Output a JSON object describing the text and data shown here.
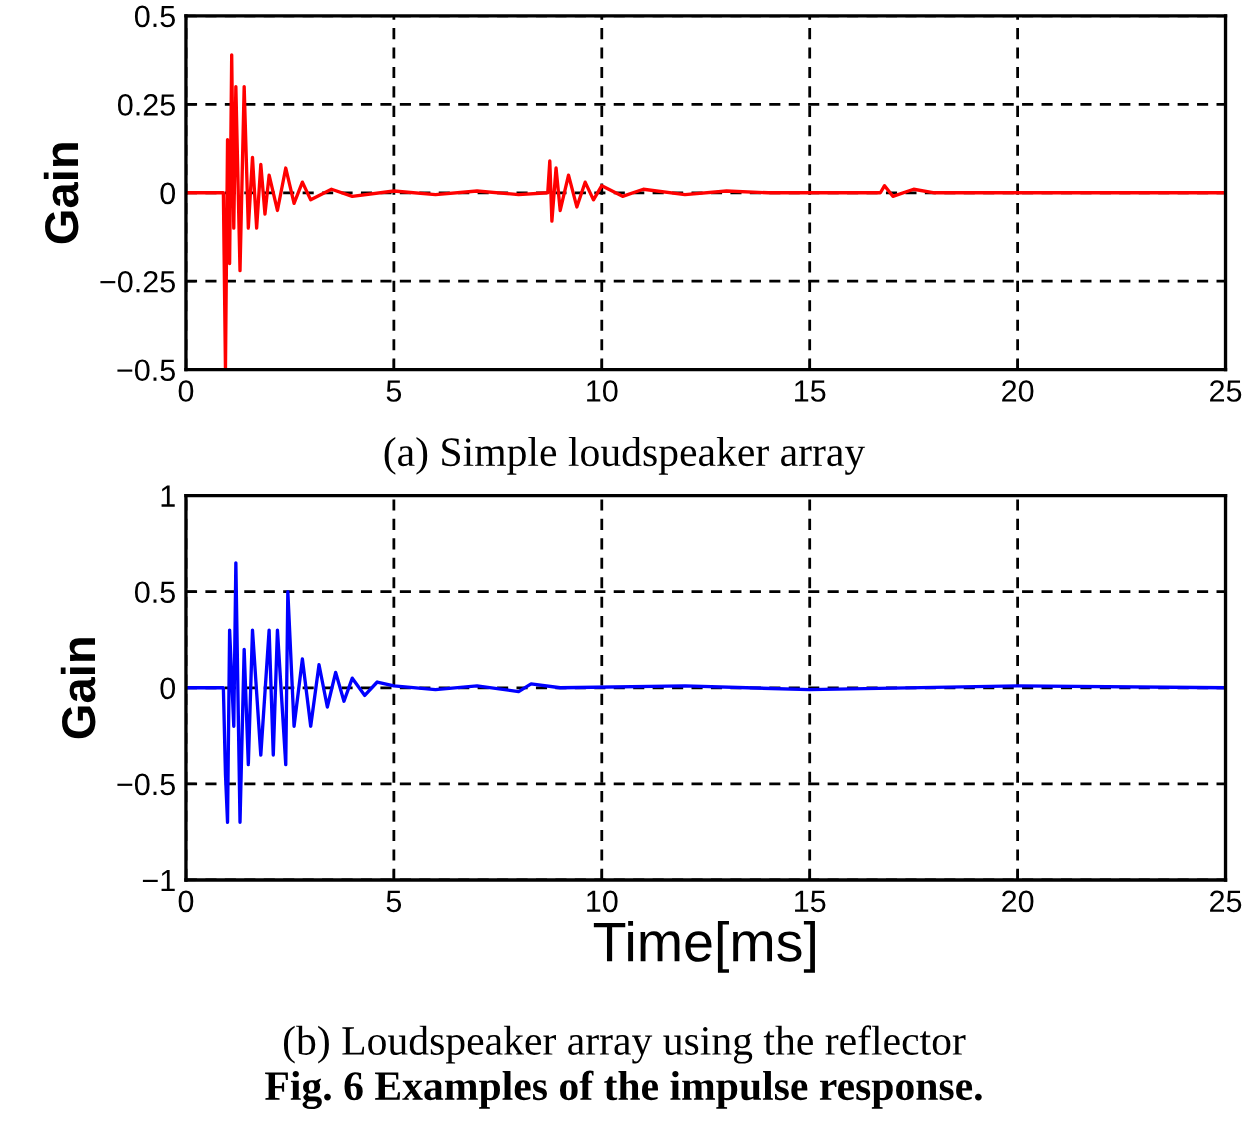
{
  "chart_data": [
    {
      "type": "line",
      "ylabel": "Gain",
      "annotations": [
        "(a) Simple loudspeaker array"
      ],
      "xlim": [
        0,
        25
      ],
      "ylim": [
        -0.5,
        0.5
      ],
      "xticks": [
        0,
        5,
        10,
        15,
        20,
        25
      ],
      "yticks": [
        -0.5,
        -0.25,
        0,
        0.25,
        0.5
      ],
      "grid": true,
      "line_style": "solid",
      "series": [
        {
          "color": "#ff0000",
          "x": [
            0,
            0.9,
            0.95,
            1.0,
            1.05,
            1.1,
            1.15,
            1.2,
            1.3,
            1.4,
            1.5,
            1.6,
            1.7,
            1.8,
            1.9,
            2.0,
            2.2,
            2.4,
            2.6,
            2.8,
            3.0,
            3.5,
            4,
            5,
            6,
            7,
            8,
            8.7,
            8.75,
            8.8,
            8.9,
            9.0,
            9.2,
            9.4,
            9.6,
            9.8,
            10,
            10.5,
            11,
            12,
            13,
            14,
            16.7,
            16.8,
            17,
            17.5,
            18,
            25
          ],
          "values": [
            0,
            0,
            -0.5,
            0.15,
            -0.2,
            0.39,
            -0.1,
            0.3,
            -0.22,
            0.3,
            -0.1,
            0.1,
            -0.1,
            0.08,
            -0.06,
            0.05,
            -0.05,
            0.07,
            -0.03,
            0.03,
            -0.02,
            0.01,
            -0.01,
            0.005,
            -0.005,
            0.005,
            -0.005,
            0,
            0.09,
            -0.08,
            0.07,
            -0.05,
            0.05,
            -0.04,
            0.03,
            -0.02,
            0.02,
            -0.01,
            0.01,
            -0.005,
            0.005,
            0,
            0,
            0.02,
            -0.01,
            0.01,
            0,
            0
          ]
        }
      ]
    },
    {
      "type": "line",
      "ylabel": "Gain",
      "xlabel": "Time[ms]",
      "annotations": [
        "(b) Loudspeaker array using the reflector",
        "Fig. 6 Examples of the impulse response."
      ],
      "xlim": [
        0,
        25
      ],
      "ylim": [
        -1,
        1
      ],
      "xticks": [
        0,
        5,
        10,
        15,
        20,
        25
      ],
      "yticks": [
        -1,
        -0.5,
        0,
        0.5,
        1
      ],
      "grid": true,
      "line_style": "solid",
      "series": [
        {
          "color": "#0000ff",
          "x": [
            0,
            0.9,
            0.95,
            1.0,
            1.05,
            1.15,
            1.2,
            1.3,
            1.4,
            1.5,
            1.6,
            1.8,
            2.0,
            2.1,
            2.2,
            2.4,
            2.45,
            2.6,
            2.8,
            3.0,
            3.2,
            3.4,
            3.6,
            3.8,
            4,
            4.3,
            4.6,
            5,
            6,
            7,
            8,
            8.3,
            9,
            12,
            15,
            20,
            25
          ],
          "values": [
            0,
            0,
            -0.45,
            -0.7,
            0.3,
            -0.2,
            0.65,
            -0.7,
            0.2,
            -0.4,
            0.3,
            -0.35,
            0.3,
            -0.35,
            0.3,
            -0.4,
            0.5,
            -0.2,
            0.15,
            -0.2,
            0.12,
            -0.1,
            0.08,
            -0.07,
            0.05,
            -0.04,
            0.03,
            0.01,
            -0.01,
            0.01,
            -0.02,
            0.02,
            0,
            0.01,
            -0.01,
            0.01,
            0
          ]
        }
      ]
    }
  ]
}
